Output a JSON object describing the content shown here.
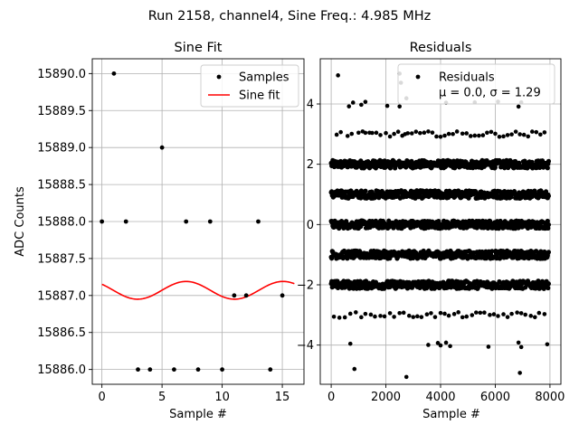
{
  "suptitle": "Run 2158, channel4, Sine Freq.: 4.985 MHz",
  "chart_data": [
    {
      "type": "scatter+line",
      "title": "Sine Fit",
      "xlabel": "Sample #",
      "ylabel": "ADC Counts",
      "xlim": [
        -0.8,
        16.8
      ],
      "ylim": [
        15885.8,
        15890.2
      ],
      "xticks": [
        0,
        5,
        10,
        15
      ],
      "yticks": [
        15886.0,
        15886.5,
        15887.0,
        15887.5,
        15888.0,
        15888.5,
        15889.0,
        15889.5,
        15890.0
      ],
      "ytick_labels": [
        "15886.0",
        "15886.5",
        "15887.0",
        "15887.5",
        "15888.0",
        "15888.5",
        "15889.0",
        "15889.5",
        "15890.0"
      ],
      "grid": true,
      "legend": {
        "placement": "upper right",
        "entries": [
          {
            "label": "Samples",
            "marker": "dot",
            "color": "#000000"
          },
          {
            "label": "Sine fit",
            "marker": "line",
            "color": "#ff0000"
          }
        ]
      },
      "series": [
        {
          "name": "Samples",
          "kind": "scatter",
          "color": "#000000",
          "x": [
            0,
            1,
            2,
            3,
            4,
            5,
            6,
            7,
            8,
            9,
            10,
            11,
            12,
            13,
            14,
            15
          ],
          "y": [
            15888,
            15890,
            15888,
            15886,
            15886,
            15889,
            15886,
            15888,
            15886,
            15888,
            15886,
            15887,
            15887,
            15888,
            15886,
            15887
          ]
        },
        {
          "name": "Sine fit",
          "kind": "line",
          "color": "#ff0000",
          "mean": 15887.07,
          "amplitude": 0.12,
          "period": 8.06,
          "peak_x": 7.0,
          "x_range": [
            0,
            16
          ]
        }
      ]
    },
    {
      "type": "scatter",
      "title": "Residuals",
      "xlabel": "Sample #",
      "ylabel": "",
      "xlim": [
        -400,
        8400
      ],
      "ylim": [
        -5.3,
        5.5
      ],
      "xticks": [
        0,
        2000,
        4000,
        6000,
        8000
      ],
      "yticks": [
        -4,
        -2,
        0,
        2,
        4
      ],
      "grid": true,
      "legend": {
        "placement": "upper right",
        "entries": [
          {
            "label": "Residuals",
            "marker": "dot",
            "color": "#000000"
          },
          {
            "label": "μ = 0.0, σ = 1.29",
            "marker": "none"
          }
        ]
      },
      "series": [
        {
          "name": "Residuals",
          "color": "#000000",
          "n_samples": 8000,
          "x_range": [
            0,
            7950
          ],
          "levels": [
            {
              "y": 2,
              "distribution": "dense"
            },
            {
              "y": 1,
              "distribution": "dense"
            },
            {
              "y": 0,
              "distribution": "dense"
            },
            {
              "y": -1,
              "distribution": "dense"
            },
            {
              "y": -2,
              "distribution": "dense"
            }
          ],
          "sparse_levels": [
            {
              "y": 3,
              "x": [
                200,
                350,
                600,
                750,
                1000,
                1150,
                1250,
                1400,
                1500,
                1650,
                1800,
                2000,
                2150,
                2300,
                2450,
                2600,
                2700,
                2800,
                2950,
                3100,
                3250,
                3400,
                3550,
                3700,
                3850,
                4000,
                4150,
                4300,
                4450,
                4600,
                4800,
                4950,
                5100,
                5250,
                5400,
                5550,
                5700,
                5850,
                6000,
                6150,
                6300,
                6450,
                6600,
                6750,
                6900,
                7050,
                7200,
                7350,
                7500,
                7650,
                7800
              ]
            },
            {
              "y": -3,
              "x": [
                100,
                300,
                500,
                700,
                900,
                1100,
                1250,
                1450,
                1600,
                1800,
                1950,
                2150,
                2300,
                2500,
                2650,
                2850,
                3000,
                3150,
                3300,
                3500,
                3650,
                3800,
                4000,
                4150,
                4300,
                4500,
                4650,
                4800,
                4950,
                5150,
                5300,
                5450,
                5600,
                5800,
                5950,
                6100,
                6300,
                6450,
                6600,
                6800,
                6950,
                7100,
                7300,
                7450,
                7600,
                7800
              ]
            },
            {
              "y": 4,
              "x": [
                650,
                800,
                1100,
                1250,
                2050,
                2500,
                4200,
                5250,
                6100,
                6850,
                6950
              ]
            },
            {
              "y": -4,
              "x": [
                700,
                3550,
                3900,
                4000,
                4200,
                4350,
                5750,
                6850,
                6950,
                7900
              ]
            },
            {
              "y": 5,
              "x": [
                250,
                2500
              ]
            },
            {
              "y": -5,
              "x": [
                2750,
                6900
              ]
            },
            {
              "y": -4.8,
              "x": [
                850
              ]
            },
            {
              "y": 4.2,
              "x": [
                2750
              ]
            },
            {
              "y": 4.7,
              "x": [
                2550
              ]
            }
          ]
        }
      ]
    }
  ]
}
